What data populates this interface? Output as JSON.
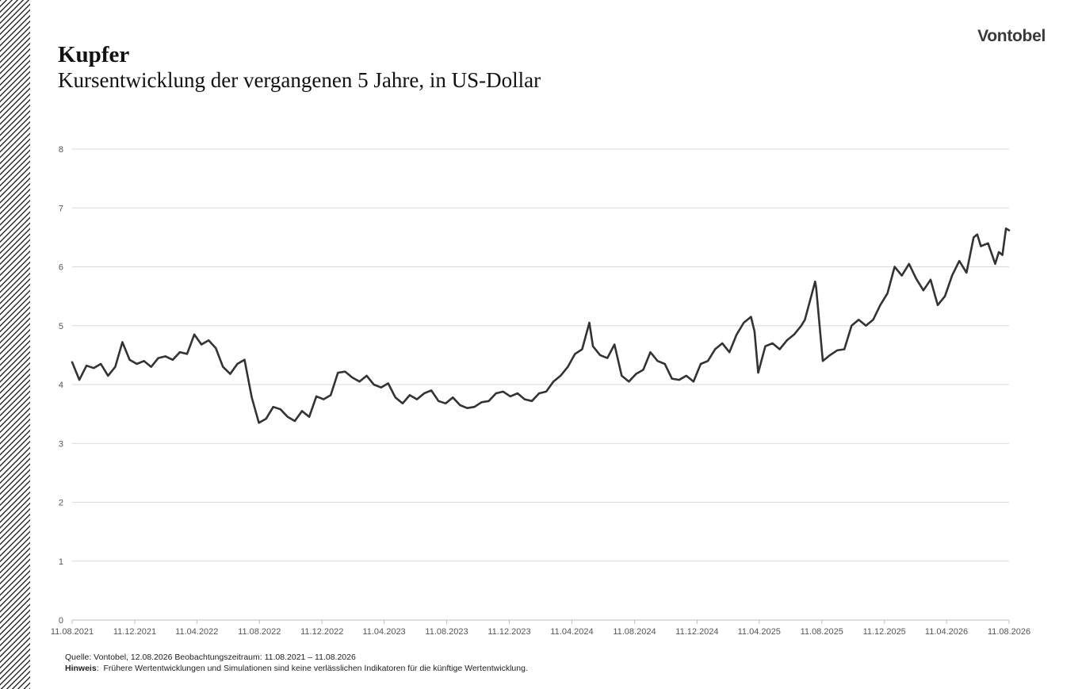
{
  "header": {
    "title": "Kupfer",
    "subtitle": "Kursentwicklung der vergangenen 5 Jahre, in US-Dollar",
    "logo": "Vontobel"
  },
  "footer": {
    "source": "Quelle: Vontobel, 12.08.2026 Beobachtungszeitraum: 11.08.2021 – 11.08.2026",
    "note_label": "Hinweis",
    "note_text": "Frühere Wertentwicklungen und Simulationen sind keine verlässlichen Indikatoren für die künftige Wertentwicklung."
  },
  "colors": {
    "line": "#333333",
    "grid": "#d9d9d9",
    "axis_text": "#555555"
  },
  "chart_data": {
    "type": "line",
    "title": "",
    "xlabel": "",
    "ylabel": "",
    "ylim": [
      0,
      8
    ],
    "yticks": [
      "0",
      "1",
      "2",
      "3",
      "4",
      "5",
      "6",
      "7",
      "8"
    ],
    "xticks": [
      "11.08.2021",
      "11.12.2021",
      "11.04.2022",
      "11.08.2022",
      "11.12.2022",
      "11.04.2023",
      "11.08.2023",
      "11.12.2023",
      "11.04.2024",
      "11.08.2024",
      "11.12.2024",
      "11.04.2025",
      "11.08.2025",
      "11.12.2025",
      "11.04.2026",
      "11.08.2026"
    ],
    "grid": true,
    "legend": "none",
    "series": [
      {
        "x": [
          "2021-08-11",
          "2021-08-25",
          "2021-09-08",
          "2021-09-22",
          "2021-10-06",
          "2021-10-20",
          "2021-11-03",
          "2021-11-17",
          "2021-12-01",
          "2021-12-15",
          "2021-12-29",
          "2022-01-12",
          "2022-01-26",
          "2022-02-09",
          "2022-02-23",
          "2022-03-09",
          "2022-03-23",
          "2022-04-06",
          "2022-04-20",
          "2022-05-04",
          "2022-05-18",
          "2022-06-01",
          "2022-06-15",
          "2022-06-29",
          "2022-07-13",
          "2022-07-27",
          "2022-08-10",
          "2022-08-24",
          "2022-09-07",
          "2022-09-21",
          "2022-10-05",
          "2022-10-19",
          "2022-11-02",
          "2022-11-16",
          "2022-11-30",
          "2022-12-14",
          "2022-12-28",
          "2023-01-11",
          "2023-01-25",
          "2023-02-08",
          "2023-02-22",
          "2023-03-08",
          "2023-03-22",
          "2023-04-05",
          "2023-04-19",
          "2023-05-03",
          "2023-05-17",
          "2023-05-31",
          "2023-06-14",
          "2023-06-28",
          "2023-07-12",
          "2023-07-26",
          "2023-08-09",
          "2023-08-23",
          "2023-09-06",
          "2023-09-20",
          "2023-10-04",
          "2023-10-18",
          "2023-11-01",
          "2023-11-15",
          "2023-11-29",
          "2023-12-13",
          "2023-12-27",
          "2024-01-10",
          "2024-01-24",
          "2024-02-07",
          "2024-02-21",
          "2024-03-06",
          "2024-03-20",
          "2024-04-03",
          "2024-04-17",
          "2024-05-01",
          "2024-05-15",
          "2024-05-22",
          "2024-06-05",
          "2024-06-19",
          "2024-07-03",
          "2024-07-17",
          "2024-07-31",
          "2024-08-14",
          "2024-08-28",
          "2024-09-11",
          "2024-09-25",
          "2024-10-09",
          "2024-10-23",
          "2024-11-06",
          "2024-11-20",
          "2024-12-04",
          "2024-12-18",
          "2025-01-01",
          "2025-01-15",
          "2025-01-29",
          "2025-02-12",
          "2025-02-26",
          "2025-03-12",
          "2025-03-26",
          "2025-04-02",
          "2025-04-09",
          "2025-04-23",
          "2025-05-07",
          "2025-05-21",
          "2025-06-04",
          "2025-06-18",
          "2025-07-02",
          "2025-07-09",
          "2025-07-23",
          "2025-07-29",
          "2025-07-31",
          "2025-08-13",
          "2025-08-27",
          "2025-09-10",
          "2025-09-24",
          "2025-10-08",
          "2025-10-22",
          "2025-11-05",
          "2025-11-19",
          "2025-12-03",
          "2025-12-17",
          "2025-12-31",
          "2026-01-14",
          "2026-01-28",
          "2026-02-11",
          "2026-02-25",
          "2026-03-11",
          "2026-03-25",
          "2026-04-08",
          "2026-04-22",
          "2026-05-06",
          "2026-05-20",
          "2026-06-03",
          "2026-06-10",
          "2026-06-17",
          "2026-07-01",
          "2026-07-15",
          "2026-07-22",
          "2026-07-29",
          "2026-08-05",
          "2026-08-11"
        ],
        "values": [
          4.38,
          4.08,
          4.32,
          4.28,
          4.35,
          4.15,
          4.3,
          4.72,
          4.42,
          4.35,
          4.4,
          4.3,
          4.45,
          4.48,
          4.42,
          4.55,
          4.52,
          4.85,
          4.68,
          4.75,
          4.62,
          4.3,
          4.18,
          4.35,
          4.42,
          3.78,
          3.35,
          3.42,
          3.62,
          3.58,
          3.45,
          3.38,
          3.55,
          3.45,
          3.8,
          3.75,
          3.82,
          4.2,
          4.22,
          4.12,
          4.05,
          4.15,
          4.0,
          3.95,
          4.02,
          3.78,
          3.68,
          3.82,
          3.75,
          3.85,
          3.9,
          3.72,
          3.68,
          3.78,
          3.65,
          3.6,
          3.62,
          3.7,
          3.72,
          3.85,
          3.88,
          3.8,
          3.85,
          3.75,
          3.72,
          3.85,
          3.88,
          4.05,
          4.15,
          4.3,
          4.52,
          4.6,
          5.05,
          4.65,
          4.5,
          4.45,
          4.68,
          4.15,
          4.05,
          4.18,
          4.25,
          4.55,
          4.4,
          4.35,
          4.1,
          4.08,
          4.15,
          4.05,
          4.35,
          4.4,
          4.6,
          4.7,
          4.55,
          4.85,
          5.05,
          5.15,
          4.9,
          4.2,
          4.65,
          4.7,
          4.6,
          4.75,
          4.85,
          5.0,
          5.1,
          5.55,
          5.75,
          5.65,
          4.4,
          4.5,
          4.58,
          4.6,
          5.0,
          5.1,
          5.0,
          5.1,
          5.35,
          5.55,
          6.0,
          5.85,
          6.05,
          5.8,
          5.6,
          5.78,
          5.35,
          5.5,
          5.85,
          6.1,
          5.9,
          6.5,
          6.55,
          6.35,
          6.4,
          6.05,
          6.25,
          6.2,
          6.65,
          6.62
        ]
      }
    ]
  }
}
